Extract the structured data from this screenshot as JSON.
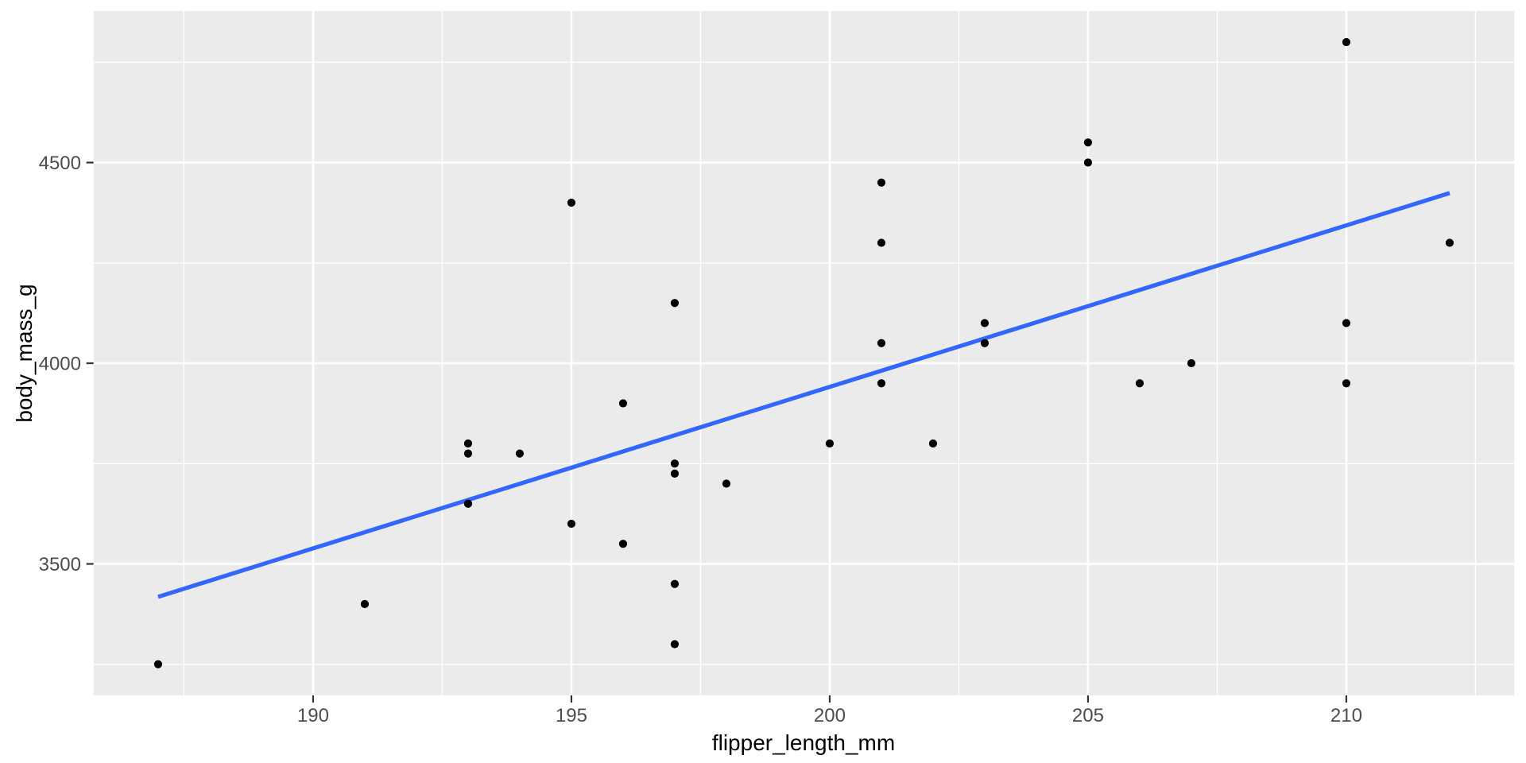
{
  "chart_data": {
    "type": "scatter",
    "title": "",
    "xlabel": "flipper_length_mm",
    "ylabel": "body_mass_g",
    "xlim": [
      185.75,
      213.25
    ],
    "ylim": [
      3172.5,
      4877.5
    ],
    "x_ticks": [
      190,
      195,
      200,
      205,
      210
    ],
    "x_minor_ticks": [
      187.5,
      192.5,
      197.5,
      202.5,
      207.5,
      212.5
    ],
    "y_ticks": [
      3500,
      4000,
      4500
    ],
    "y_minor_ticks": [
      3250,
      3750,
      4250,
      4750
    ],
    "grid": true,
    "legend_position": "none",
    "points": [
      [
        187,
        3250
      ],
      [
        191,
        3400
      ],
      [
        193,
        3650
      ],
      [
        193,
        3775
      ],
      [
        193,
        3800
      ],
      [
        194,
        3775
      ],
      [
        195,
        3600
      ],
      [
        195,
        4400
      ],
      [
        196,
        3550
      ],
      [
        196,
        3900
      ],
      [
        197,
        3300
      ],
      [
        197,
        3450
      ],
      [
        197,
        3725
      ],
      [
        197,
        3750
      ],
      [
        197,
        4150
      ],
      [
        198,
        3700
      ],
      [
        200,
        3800
      ],
      [
        201,
        3950
      ],
      [
        201,
        4050
      ],
      [
        201,
        4300
      ],
      [
        201,
        4450
      ],
      [
        202,
        3800
      ],
      [
        203,
        4050
      ],
      [
        203,
        4100
      ],
      [
        205,
        4500
      ],
      [
        205,
        4550
      ],
      [
        206,
        3950
      ],
      [
        207,
        4000
      ],
      [
        210,
        3950
      ],
      [
        210,
        4100
      ],
      [
        210,
        4800
      ],
      [
        212,
        4300
      ]
    ],
    "smooth_line": {
      "method": "lm",
      "slope": 40.24,
      "intercept": -4107,
      "x_start": 187,
      "y_start": 3418,
      "x_end": 212,
      "y_end": 4424
    }
  },
  "style": {
    "figure_bg": "#FFFFFF",
    "panel_bg": "#EBEBEB",
    "grid_color": "#FFFFFF",
    "point_color": "#000000",
    "smooth_line_color": "#3366FF",
    "tick_mark_color": "#333333",
    "tick_label_color": "#4D4D4D",
    "axis_title_color": "#000000"
  }
}
